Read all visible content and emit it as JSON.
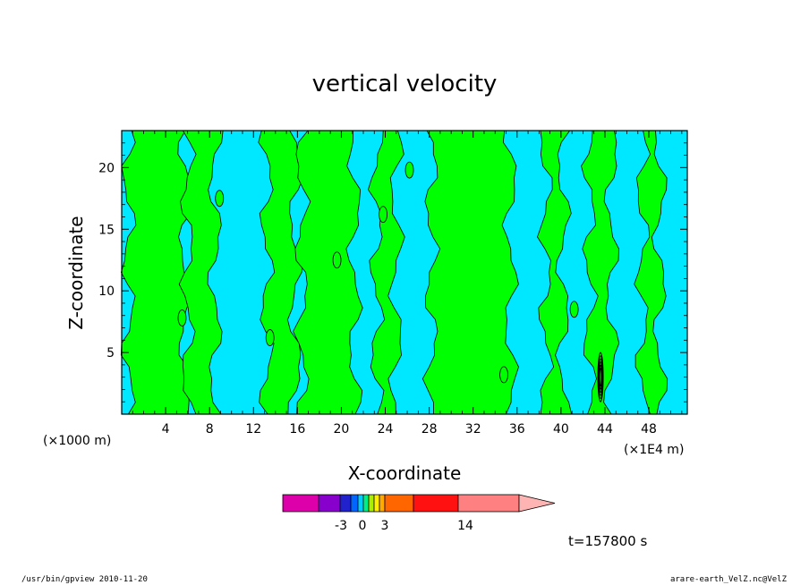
{
  "chart_data": {
    "type": "heatmap",
    "title": "vertical velocity",
    "xlabel": "X-coordinate",
    "ylabel": "Z-coordinate",
    "x_unit_left": "(×1000 m)",
    "x_unit_right": "(×1E4 m)",
    "xlim": [
      0,
      51.5
    ],
    "ylim": [
      0,
      23
    ],
    "x_ticks": [
      4,
      8,
      12,
      16,
      20,
      24,
      28,
      32,
      36,
      40,
      44,
      48
    ],
    "y_ticks": [
      5,
      10,
      15,
      20
    ],
    "colors": {
      "positive": "#00ff00",
      "negative": "#00e8ff",
      "contour": "#000000"
    },
    "green_regions_x": [
      [
        0.6,
        5.8
      ],
      [
        6.0,
        8.5
      ],
      [
        13.2,
        15.8
      ],
      [
        16.4,
        21.2
      ],
      [
        23.2,
        25.0
      ],
      [
        28.2,
        35.4
      ],
      [
        38.6,
        40.2
      ],
      [
        42.6,
        44.6
      ],
      [
        47.4,
        49.0
      ]
    ],
    "colorbar": {
      "labels": [
        "-3",
        "0",
        "3",
        "14"
      ],
      "colors": [
        "#dd00aa",
        "#8800cc",
        "#2222cc",
        "#0066ff",
        "#00ccff",
        "#00ee88",
        "#aaee00",
        "#ffee00",
        "#ffaa00",
        "#ff6600",
        "#ff1111",
        "#ff8080",
        "#ffb4b4"
      ]
    },
    "time_label": "t=157800 s"
  },
  "footer": {
    "left": "/usr/bin/gpview   2010-11-20",
    "right": "arare-earth_VelZ.nc@VelZ"
  }
}
